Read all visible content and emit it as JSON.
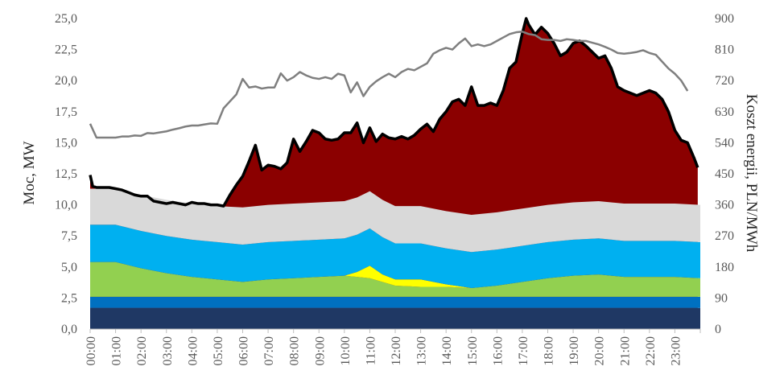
{
  "chart_data": {
    "type": "area",
    "title": "",
    "xlabel": "",
    "ylabel": "Moc, MW",
    "y2label": "Koszt energii, PLN/MWh",
    "ylim": [
      0,
      25
    ],
    "y2lim": [
      0,
      900
    ],
    "yticks": [
      "0,0",
      "2,5",
      "5,0",
      "7,5",
      "10,0",
      "12,5",
      "15,0",
      "17,5",
      "20,0",
      "22,5",
      "25,0"
    ],
    "y2ticks": [
      "0",
      "90",
      "180",
      "270",
      "360",
      "450",
      "540",
      "630",
      "720",
      "810",
      "900"
    ],
    "x_tick_labels": [
      "00:00",
      "01:00",
      "02:00",
      "03:00",
      "04:00",
      "05:00",
      "06:00",
      "07:00",
      "08:00",
      "09:00",
      "10:00",
      "11:00",
      "12:00",
      "13:00",
      "14:00",
      "15:00",
      "16:00",
      "17:00",
      "18:00",
      "19:00",
      "20:00",
      "21:00",
      "22:00",
      "23:00"
    ],
    "x_range_hours": [
      0,
      24
    ],
    "grid": false,
    "legend": "none",
    "stack_x_hours": [
      0,
      1,
      2,
      3,
      4,
      5,
      6,
      7,
      8,
      9,
      10,
      10.5,
      11,
      11.5,
      12,
      13,
      14,
      15,
      16,
      17,
      18,
      19,
      20,
      21,
      22,
      23,
      24
    ],
    "stacked_series": [
      {
        "color": "#1f3864",
        "values": [
          1.7,
          1.7,
          1.7,
          1.7,
          1.7,
          1.7,
          1.7,
          1.7,
          1.7,
          1.7,
          1.7,
          1.7,
          1.7,
          1.7,
          1.7,
          1.7,
          1.7,
          1.7,
          1.7,
          1.7,
          1.7,
          1.7,
          1.7,
          1.7,
          1.7,
          1.7,
          1.7
        ]
      },
      {
        "color": "#0070c0",
        "values": [
          0.9,
          0.9,
          0.9,
          0.9,
          0.9,
          0.9,
          0.9,
          0.9,
          0.9,
          0.9,
          0.9,
          0.9,
          0.9,
          0.9,
          0.9,
          0.9,
          0.9,
          0.9,
          0.9,
          0.9,
          0.9,
          0.9,
          0.9,
          0.9,
          0.9,
          0.9,
          0.9
        ]
      },
      {
        "color": "#92d050",
        "values": [
          2.8,
          2.8,
          2.3,
          1.9,
          1.6,
          1.4,
          1.2,
          1.4,
          1.5,
          1.6,
          1.7,
          1.6,
          1.5,
          1.2,
          0.9,
          0.8,
          0.8,
          0.7,
          0.9,
          1.2,
          1.5,
          1.7,
          1.8,
          1.6,
          1.6,
          1.6,
          1.5
        ]
      },
      {
        "color": "#ffff00",
        "values": [
          0,
          0,
          0,
          0,
          0,
          0,
          0,
          0,
          0,
          0,
          0,
          0.4,
          1.0,
          0.6,
          0.5,
          0.6,
          0.2,
          0,
          0,
          0,
          0,
          0,
          0,
          0,
          0,
          0,
          0
        ]
      },
      {
        "color": "#00b0f0",
        "values": [
          3.0,
          3.0,
          3.0,
          3.0,
          3.0,
          3.0,
          3.0,
          3.0,
          3.0,
          3.0,
          3.0,
          3.0,
          3.0,
          3.0,
          2.9,
          2.9,
          2.9,
          2.9,
          2.9,
          2.9,
          2.9,
          2.9,
          2.9,
          2.9,
          2.9,
          2.9,
          2.9
        ]
      },
      {
        "color": "#d9d9d9",
        "values": [
          2.9,
          2.9,
          2.9,
          2.9,
          2.9,
          2.9,
          3.0,
          3.0,
          3.0,
          3.0,
          3.0,
          3.0,
          3.0,
          3.0,
          3.0,
          3.0,
          3.0,
          3.0,
          3.0,
          3.0,
          3.0,
          3.0,
          3.0,
          3.0,
          3.0,
          3.0,
          3.0
        ]
      }
    ],
    "total_x_hours": [
      0,
      0.1,
      0.25,
      0.5,
      0.75,
      1,
      1.25,
      1.5,
      1.75,
      2,
      2.25,
      2.5,
      2.75,
      3,
      3.25,
      3.5,
      3.75,
      4,
      4.25,
      4.5,
      4.75,
      5,
      5.25,
      5.5,
      5.75,
      6,
      6.25,
      6.5,
      6.75,
      7,
      7.25,
      7.5,
      7.75,
      8,
      8.25,
      8.5,
      8.75,
      9,
      9.25,
      9.5,
      9.75,
      10,
      10.25,
      10.5,
      10.75,
      11,
      11.25,
      11.5,
      11.75,
      12,
      12.25,
      12.5,
      12.75,
      13,
      13.25,
      13.5,
      13.75,
      14,
      14.25,
      14.5,
      14.75,
      15,
      15.25,
      15.5,
      15.75,
      16,
      16.25,
      16.5,
      16.75,
      17,
      17.15,
      17.25,
      17.5,
      17.75,
      18,
      18.25,
      18.5,
      18.75,
      19,
      19.25,
      19.5,
      19.75,
      20,
      20.25,
      20.5,
      20.75,
      21,
      21.25,
      21.5,
      21.75,
      22,
      22.25,
      22.5,
      22.75,
      23,
      23.25,
      23.5,
      23.75,
      23.9
    ],
    "total_values": [
      12.4,
      11.5,
      11.4,
      11.4,
      11.4,
      11.3,
      11.2,
      11.0,
      10.8,
      10.7,
      10.7,
      10.3,
      10.2,
      10.1,
      10.2,
      10.1,
      10.0,
      10.2,
      10.1,
      10.1,
      10.0,
      10.0,
      9.9,
      10.8,
      11.6,
      12.3,
      13.5,
      14.8,
      12.8,
      13.2,
      13.1,
      12.9,
      13.4,
      15.3,
      14.3,
      15.1,
      16.0,
      15.8,
      15.3,
      15.2,
      15.3,
      15.8,
      15.8,
      16.6,
      15.0,
      16.2,
      15.1,
      15.7,
      15.4,
      15.3,
      15.5,
      15.3,
      15.6,
      16.1,
      16.5,
      15.9,
      16.9,
      17.5,
      18.3,
      18.5,
      18.0,
      19.5,
      18.0,
      18.0,
      18.2,
      18.0,
      19.2,
      21.0,
      21.5,
      23.8,
      25.0,
      24.5,
      23.7,
      24.3,
      23.8,
      23.0,
      22.0,
      22.3,
      23.0,
      23.2,
      22.8,
      22.3,
      21.8,
      22.0,
      21.0,
      19.5,
      19.2,
      19.0,
      18.8,
      19.0,
      19.2,
      19.0,
      18.5,
      17.5,
      16.0,
      15.2,
      15.0,
      13.8,
      13.0
    ],
    "series_colors": {
      "total_fill": "#8b0000",
      "total_line": "#000000",
      "price_line": "#7f7f7f"
    },
    "price_x_hours": [
      0,
      0.25,
      0.5,
      0.75,
      1,
      1.25,
      1.5,
      1.75,
      2,
      2.25,
      2.5,
      2.75,
      3,
      3.25,
      3.5,
      3.75,
      4,
      4.25,
      4.5,
      4.75,
      5,
      5.25,
      5.5,
      5.75,
      6,
      6.25,
      6.5,
      6.75,
      7,
      7.25,
      7.5,
      7.75,
      8,
      8.25,
      8.5,
      8.75,
      9,
      9.25,
      9.5,
      9.75,
      10,
      10.25,
      10.5,
      10.75,
      11,
      11.25,
      11.5,
      11.75,
      12,
      12.25,
      12.5,
      12.75,
      13,
      13.25,
      13.5,
      13.75,
      14,
      14.25,
      14.5,
      14.75,
      15,
      15.25,
      15.5,
      15.75,
      16,
      16.25,
      16.5,
      16.75,
      17,
      17.25,
      17.5,
      17.75,
      18,
      18.25,
      18.5,
      18.75,
      19,
      19.25,
      19.5,
      19.75,
      20,
      20.25,
      20.5,
      20.75,
      21,
      21.25,
      21.5,
      21.75,
      22,
      22.25,
      22.5,
      22.75,
      23,
      23.25,
      23.5,
      23.75,
      23.9
    ],
    "price_values": [
      595,
      555,
      555,
      555,
      555,
      558,
      558,
      561,
      560,
      568,
      567,
      570,
      573,
      578,
      582,
      587,
      590,
      590,
      593,
      596,
      595,
      640,
      660,
      680,
      725,
      700,
      703,
      697,
      700,
      700,
      741,
      720,
      730,
      745,
      735,
      728,
      725,
      730,
      725,
      740,
      735,
      686,
      715,
      675,
      702,
      718,
      730,
      740,
      730,
      745,
      754,
      750,
      760,
      770,
      798,
      808,
      815,
      810,
      828,
      842,
      820,
      825,
      820,
      825,
      835,
      845,
      855,
      860,
      862,
      855,
      852,
      840,
      838,
      838,
      835,
      840,
      838,
      835,
      835,
      830,
      825,
      818,
      810,
      800,
      798,
      800,
      803,
      808,
      800,
      795,
      775,
      755,
      740,
      720,
      690
    ]
  }
}
